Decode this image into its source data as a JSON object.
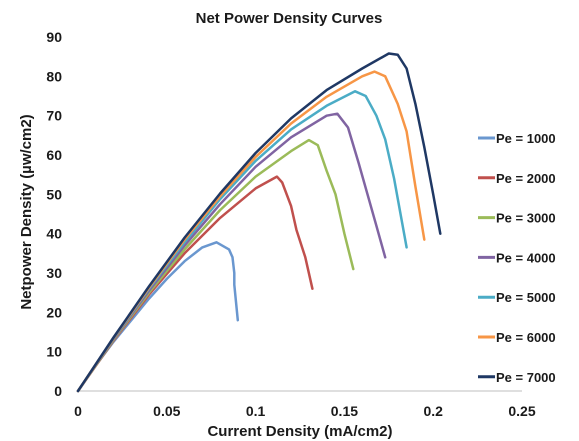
{
  "chart_data": {
    "type": "line",
    "title": "Net Power Density Curves",
    "xlabel": "Current Density (mA/cm2)",
    "ylabel": "Netpower Density  (µw/cm2)",
    "xlim": [
      0,
      0.25
    ],
    "ylim": [
      0,
      90
    ],
    "xticks": [
      "0",
      "0.05",
      "0.1",
      "0.15",
      "0.2",
      "0.25"
    ],
    "yticks": [
      "0",
      "10",
      "20",
      "30",
      "40",
      "50",
      "60",
      "70",
      "80",
      "90"
    ],
    "grid": false,
    "legend_position": "right",
    "series": [
      {
        "name": "Pe = 1000",
        "color": "#6a97cf",
        "points": [
          [
            0,
            0
          ],
          [
            0.01,
            6.5
          ],
          [
            0.02,
            12.5
          ],
          [
            0.03,
            18
          ],
          [
            0.04,
            23.5
          ],
          [
            0.05,
            28.5
          ],
          [
            0.06,
            33
          ],
          [
            0.07,
            36.5
          ],
          [
            0.078,
            37.8
          ],
          [
            0.085,
            36
          ],
          [
            0.087,
            34
          ],
          [
            0.088,
            30
          ],
          [
            0.088,
            27
          ],
          [
            0.09,
            18
          ]
        ]
      },
      {
        "name": "Pe = 2000",
        "color": "#c0504d",
        "points": [
          [
            0,
            0
          ],
          [
            0.02,
            12.8
          ],
          [
            0.04,
            24.5
          ],
          [
            0.06,
            35
          ],
          [
            0.08,
            44
          ],
          [
            0.1,
            51.5
          ],
          [
            0.112,
            54.5
          ],
          [
            0.115,
            53
          ],
          [
            0.12,
            47
          ],
          [
            0.123,
            41
          ],
          [
            0.128,
            34
          ],
          [
            0.132,
            26
          ]
        ]
      },
      {
        "name": "Pe = 3000",
        "color": "#9bbb59",
        "points": [
          [
            0,
            0
          ],
          [
            0.02,
            13
          ],
          [
            0.04,
            25
          ],
          [
            0.06,
            36
          ],
          [
            0.08,
            46
          ],
          [
            0.1,
            54.5
          ],
          [
            0.12,
            61
          ],
          [
            0.13,
            63.8
          ],
          [
            0.135,
            62.5
          ],
          [
            0.14,
            56
          ],
          [
            0.145,
            50
          ],
          [
            0.15,
            40
          ],
          [
            0.155,
            31
          ]
        ]
      },
      {
        "name": "Pe = 4000",
        "color": "#8064a2",
        "points": [
          [
            0,
            0
          ],
          [
            0.02,
            13.2
          ],
          [
            0.04,
            25.5
          ],
          [
            0.06,
            37
          ],
          [
            0.08,
            47.5
          ],
          [
            0.1,
            57
          ],
          [
            0.12,
            64.5
          ],
          [
            0.14,
            70
          ],
          [
            0.146,
            70.5
          ],
          [
            0.152,
            67
          ],
          [
            0.158,
            58
          ],
          [
            0.163,
            50
          ],
          [
            0.168,
            42
          ],
          [
            0.173,
            34
          ]
        ]
      },
      {
        "name": "Pe = 5000",
        "color": "#4bacc6",
        "points": [
          [
            0,
            0
          ],
          [
            0.02,
            13.4
          ],
          [
            0.04,
            26
          ],
          [
            0.06,
            37.8
          ],
          [
            0.08,
            48.8
          ],
          [
            0.1,
            58.5
          ],
          [
            0.12,
            66.5
          ],
          [
            0.14,
            72.5
          ],
          [
            0.156,
            76.2
          ],
          [
            0.162,
            75
          ],
          [
            0.168,
            70
          ],
          [
            0.173,
            64
          ],
          [
            0.178,
            54
          ],
          [
            0.185,
            36.5
          ]
        ]
      },
      {
        "name": "Pe = 6000",
        "color": "#f79646",
        "points": [
          [
            0,
            0
          ],
          [
            0.02,
            13.5
          ],
          [
            0.04,
            26.3
          ],
          [
            0.06,
            38.5
          ],
          [
            0.08,
            49.5
          ],
          [
            0.1,
            59.5
          ],
          [
            0.12,
            68
          ],
          [
            0.14,
            74.8
          ],
          [
            0.16,
            80
          ],
          [
            0.167,
            81.2
          ],
          [
            0.173,
            80
          ],
          [
            0.18,
            73
          ],
          [
            0.185,
            66
          ],
          [
            0.19,
            52
          ],
          [
            0.195,
            38.5
          ]
        ]
      },
      {
        "name": "Pe = 7000",
        "color": "#1f3864",
        "points": [
          [
            0,
            0
          ],
          [
            0.02,
            13.6
          ],
          [
            0.04,
            26.6
          ],
          [
            0.06,
            39
          ],
          [
            0.08,
            50.2
          ],
          [
            0.1,
            60.5
          ],
          [
            0.12,
            69.3
          ],
          [
            0.14,
            76.5
          ],
          [
            0.16,
            82
          ],
          [
            0.175,
            85.8
          ],
          [
            0.18,
            85.5
          ],
          [
            0.185,
            82
          ],
          [
            0.19,
            73
          ],
          [
            0.195,
            62
          ],
          [
            0.2,
            50
          ],
          [
            0.204,
            40
          ]
        ]
      }
    ]
  }
}
